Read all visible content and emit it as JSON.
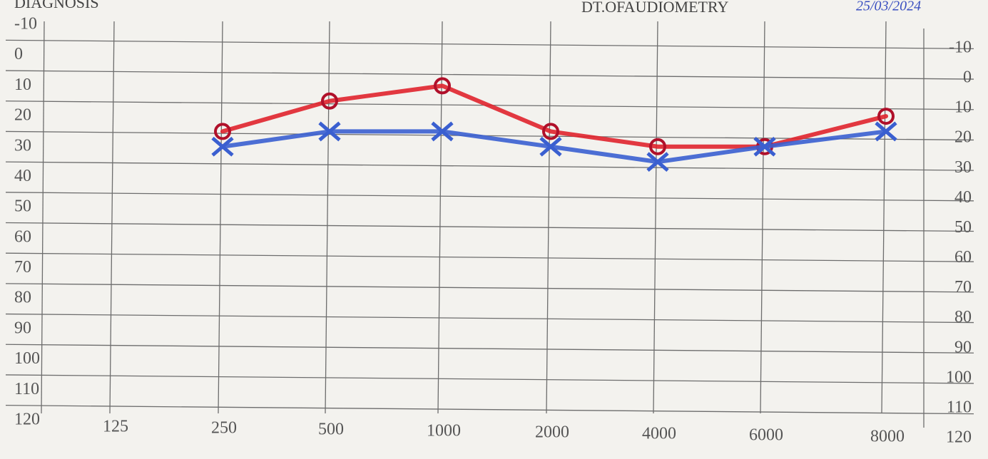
{
  "header": {
    "label": "DIAGNOSIS",
    "date_label": "DT.OFAUDIOMETRY",
    "date": "25/03/2024"
  },
  "chart_data": {
    "type": "line",
    "categories": [
      "125",
      "250",
      "500",
      "1000",
      "2000",
      "4000",
      "6000",
      "8000"
    ],
    "series": [
      {
        "color": "#e0242c",
        "marker": "o",
        "values": [
          null,
          25,
          15,
          10,
          25,
          30,
          30,
          20
        ]
      },
      {
        "color": "#3a5fd0",
        "marker": "x",
        "values": [
          null,
          30,
          25,
          25,
          30,
          35,
          30,
          25
        ]
      }
    ],
    "ylim": [
      -10,
      120
    ],
    "yticks": [
      -10,
      0,
      10,
      20,
      30,
      40,
      50,
      60,
      70,
      80,
      90,
      100,
      110,
      120
    ],
    "y2lim": [
      -10,
      120
    ],
    "y2ticks": [
      -10,
      0,
      10,
      20,
      30,
      40,
      50,
      60,
      70,
      80,
      90,
      100,
      110,
      120
    ],
    "inverted": true,
    "grid": true
  }
}
